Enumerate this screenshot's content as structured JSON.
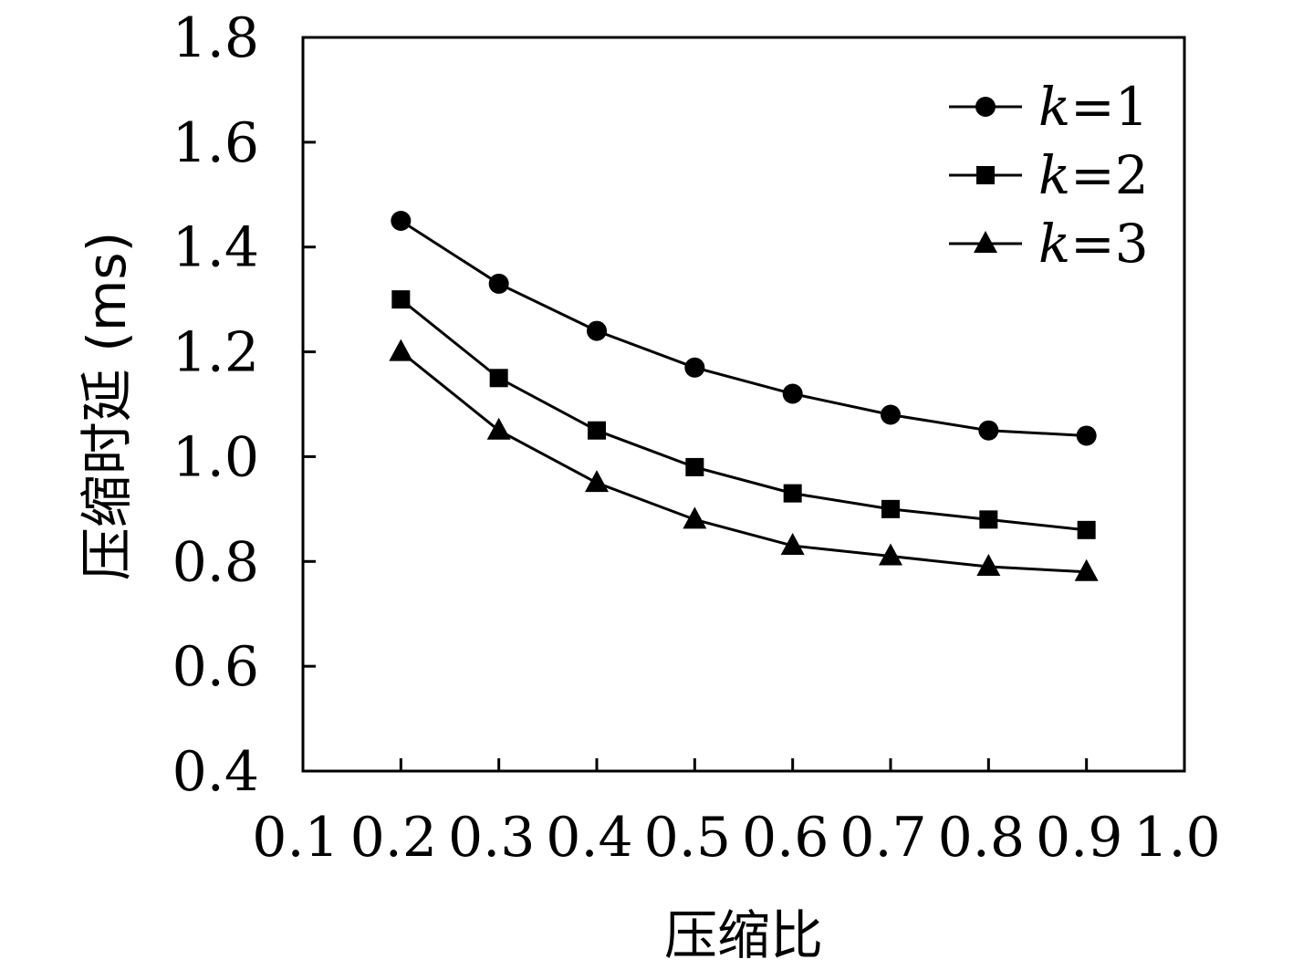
{
  "chart_data": {
    "type": "line",
    "title": "",
    "xlabel": "压缩比",
    "ylabel": "压缩时延 (ms)",
    "xlim": [
      0.1,
      1.0
    ],
    "ylim": [
      0.4,
      1.8
    ],
    "xticks": [
      "0.1",
      "0.2",
      "0.3",
      "0.4",
      "0.5",
      "0.6",
      "0.7",
      "0.8",
      "0.9",
      "1.0"
    ],
    "yticks": [
      "0.4",
      "0.6",
      "0.8",
      "1.0",
      "1.2",
      "1.4",
      "1.6",
      "1.8"
    ],
    "grid": false,
    "legend_position": "top-right",
    "x": [
      0.2,
      0.3,
      0.4,
      0.5,
      0.6,
      0.7,
      0.8,
      0.9
    ],
    "series": [
      {
        "name": "k=1",
        "legend_var": "k",
        "legend_val": "=1",
        "marker": "circle",
        "color": "#000000",
        "values": [
          1.45,
          1.33,
          1.24,
          1.17,
          1.12,
          1.08,
          1.05,
          1.04
        ]
      },
      {
        "name": "k=2",
        "legend_var": "k",
        "legend_val": "=2",
        "marker": "square",
        "color": "#000000",
        "values": [
          1.3,
          1.15,
          1.05,
          0.98,
          0.93,
          0.9,
          0.88,
          0.86
        ]
      },
      {
        "name": "k=3",
        "legend_var": "k",
        "legend_val": "=3",
        "marker": "triangle",
        "color": "#000000",
        "values": [
          1.2,
          1.05,
          0.95,
          0.88,
          0.83,
          0.81,
          0.79,
          0.78
        ]
      }
    ]
  }
}
